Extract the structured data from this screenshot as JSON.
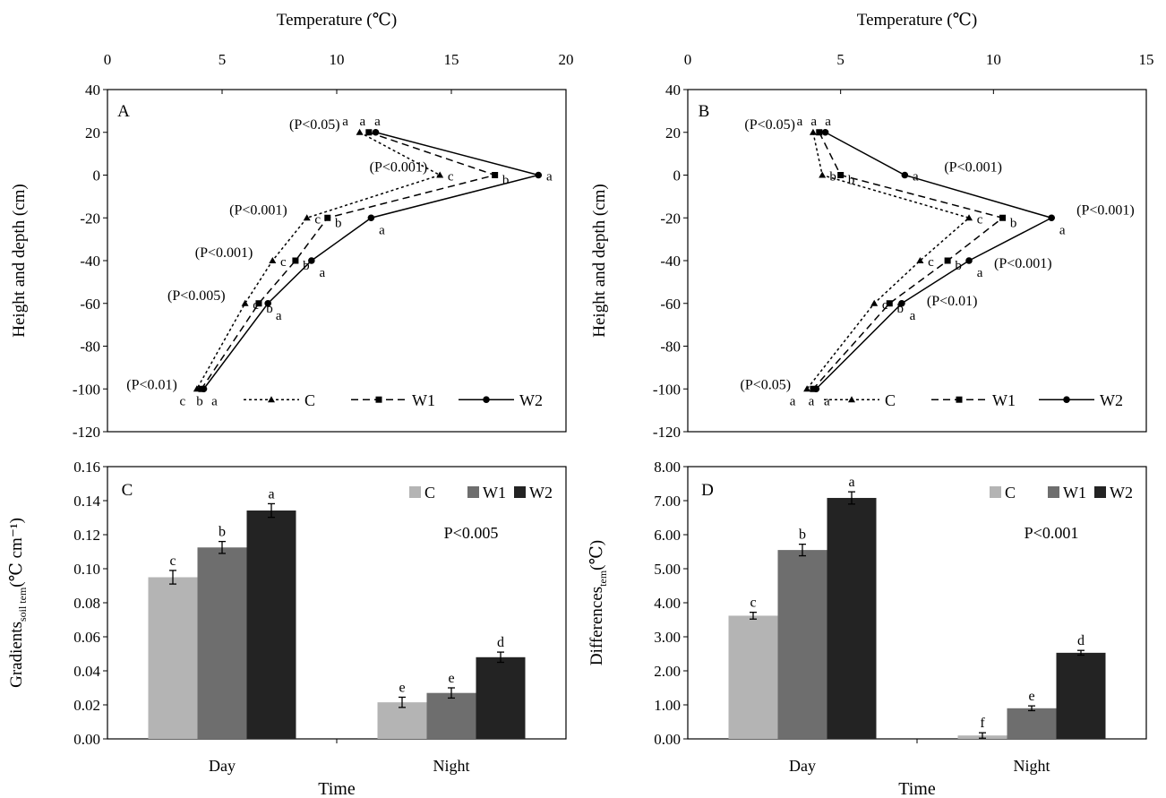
{
  "chart_data": [
    {
      "panel": "A",
      "type": "line",
      "title": "",
      "xlabel": "Temperature (℃)",
      "ylabel": "Height and depth (cm)",
      "xlim": [
        0,
        20
      ],
      "xticks": [
        "0",
        "5",
        "10",
        "15",
        "20"
      ],
      "ylim": [
        -120,
        40
      ],
      "yticks": [
        "40",
        "20",
        "0",
        "-20",
        "-40",
        "-60",
        "-80",
        "-100",
        "-120"
      ],
      "legend": "bottom",
      "series": [
        {
          "name": "C",
          "line": "dotted",
          "marker": "triangle",
          "points": [
            {
              "x": 11.0,
              "y": 20
            },
            {
              "x": 14.5,
              "y": 0
            },
            {
              "x": 8.7,
              "y": -20
            },
            {
              "x": 7.2,
              "y": -40
            },
            {
              "x": 6.0,
              "y": -60
            },
            {
              "x": 3.9,
              "y": -100
            }
          ],
          "letters": [
            "a",
            "c",
            "c",
            "c",
            "c",
            "c"
          ]
        },
        {
          "name": "W1",
          "line": "dashed",
          "marker": "square",
          "points": [
            {
              "x": 11.4,
              "y": 20
            },
            {
              "x": 16.9,
              "y": 0
            },
            {
              "x": 9.6,
              "y": -20
            },
            {
              "x": 8.2,
              "y": -40
            },
            {
              "x": 6.6,
              "y": -60
            },
            {
              "x": 4.1,
              "y": -100
            }
          ],
          "letters": [
            "a",
            "b",
            "b",
            "b",
            "b",
            "b"
          ]
        },
        {
          "name": "W2",
          "line": "solid",
          "marker": "circle",
          "points": [
            {
              "x": 11.7,
              "y": 20
            },
            {
              "x": 18.8,
              "y": 0
            },
            {
              "x": 11.5,
              "y": -20
            },
            {
              "x": 8.9,
              "y": -40
            },
            {
              "x": 7.0,
              "y": -60
            },
            {
              "x": 4.2,
              "y": -100
            }
          ],
          "letters": [
            "a",
            "a",
            "a",
            "a",
            "a",
            "a"
          ]
        }
      ],
      "pvalues": [
        {
          "y": 20,
          "text": "(P<0.05)"
        },
        {
          "y": 0,
          "text": "(P<0.001)"
        },
        {
          "y": -20,
          "text": "(P<0.001)"
        },
        {
          "y": -40,
          "text": "(P<0.001)"
        },
        {
          "y": -60,
          "text": "(P<0.005)"
        },
        {
          "y": -100,
          "text": "(P<0.01)"
        }
      ]
    },
    {
      "panel": "B",
      "type": "line",
      "title": "",
      "xlabel": "Temperature (℃)",
      "ylabel": "Height and depth (cm)",
      "xlim": [
        0,
        15
      ],
      "xticks": [
        "0",
        "5",
        "10",
        "15"
      ],
      "ylim": [
        -120,
        40
      ],
      "yticks": [
        "40",
        "20",
        "0",
        "-20",
        "-40",
        "-60",
        "-80",
        "-100",
        "-120"
      ],
      "legend": "bottom",
      "series": [
        {
          "name": "C",
          "line": "dotted",
          "marker": "triangle",
          "points": [
            {
              "x": 4.1,
              "y": 20
            },
            {
              "x": 4.4,
              "y": 0
            },
            {
              "x": 9.2,
              "y": -20
            },
            {
              "x": 7.6,
              "y": -40
            },
            {
              "x": 6.1,
              "y": -60
            },
            {
              "x": 3.9,
              "y": -100
            }
          ],
          "letters": [
            "a",
            "b",
            "c",
            "c",
            "c",
            "a"
          ]
        },
        {
          "name": "W1",
          "line": "dashed",
          "marker": "square",
          "points": [
            {
              "x": 4.3,
              "y": 20
            },
            {
              "x": 5.0,
              "y": 0
            },
            {
              "x": 10.3,
              "y": -20
            },
            {
              "x": 8.5,
              "y": -40
            },
            {
              "x": 6.6,
              "y": -60
            },
            {
              "x": 4.1,
              "y": -100
            }
          ],
          "letters": [
            "a",
            "b",
            "b",
            "b",
            "b",
            "a"
          ]
        },
        {
          "name": "W2",
          "line": "solid",
          "marker": "circle",
          "points": [
            {
              "x": 4.5,
              "y": 20
            },
            {
              "x": 7.1,
              "y": 0
            },
            {
              "x": 11.9,
              "y": -20
            },
            {
              "x": 9.2,
              "y": -40
            },
            {
              "x": 7.0,
              "y": -60
            },
            {
              "x": 4.2,
              "y": -100
            }
          ],
          "letters": [
            "a",
            "a",
            "a",
            "a",
            "a",
            "a"
          ]
        }
      ],
      "pvalues": [
        {
          "y": 20,
          "text": "(P<0.05)"
        },
        {
          "y": 0,
          "text": "(P<0.001)"
        },
        {
          "y": -20,
          "text": "(P<0.001)"
        },
        {
          "y": -40,
          "text": "(P<0.001)"
        },
        {
          "y": -60,
          "text": "(P<0.01)"
        },
        {
          "y": -100,
          "text": "(P<0.05)"
        }
      ]
    },
    {
      "panel": "C",
      "type": "bar",
      "title": "",
      "xlabel": "Time",
      "ylabel": "Gradients",
      "ylabel_sub": "soil tem",
      "ylabel_unit": "(℃ cm⁻¹)",
      "categories": [
        "Day",
        "Night"
      ],
      "ylim": [
        0,
        0.16
      ],
      "yticks": [
        "0.00",
        "0.02",
        "0.04",
        "0.06",
        "0.08",
        "0.10",
        "0.12",
        "0.14",
        "0.16"
      ],
      "legend": "top-right",
      "annotation": "P<0.005",
      "series": [
        {
          "name": "C",
          "color": "#b4b4b4",
          "values": [
            0.095,
            0.0215
          ],
          "errors": [
            0.004,
            0.003
          ],
          "letters": [
            "c",
            "e"
          ]
        },
        {
          "name": "W1",
          "color": "#6e6e6e",
          "values": [
            0.1125,
            0.027
          ],
          "errors": [
            0.0035,
            0.003
          ],
          "letters": [
            "b",
            "e"
          ]
        },
        {
          "name": "W2",
          "color": "#232323",
          "values": [
            0.1342,
            0.048
          ],
          "errors": [
            0.004,
            0.003
          ],
          "letters": [
            "a",
            "d"
          ]
        }
      ]
    },
    {
      "panel": "D",
      "type": "bar",
      "title": "",
      "xlabel": "Time",
      "ylabel": "Differences",
      "ylabel_sub": "tem",
      "ylabel_unit": "(℃)",
      "categories": [
        "Day",
        "Night"
      ],
      "ylim": [
        0,
        8
      ],
      "yticks": [
        "0.00",
        "1.00",
        "2.00",
        "3.00",
        "4.00",
        "5.00",
        "6.00",
        "7.00",
        "8.00"
      ],
      "legend": "top-right",
      "annotation": "P<0.001",
      "series": [
        {
          "name": "C",
          "color": "#b4b4b4",
          "values": [
            3.62,
            0.1
          ],
          "errors": [
            0.1,
            0.08
          ],
          "letters": [
            "c",
            "f"
          ]
        },
        {
          "name": "W1",
          "color": "#6e6e6e",
          "values": [
            5.55,
            0.9
          ],
          "errors": [
            0.17,
            0.07
          ],
          "letters": [
            "b",
            "e"
          ]
        },
        {
          "name": "W2",
          "color": "#232323",
          "values": [
            7.08,
            2.53
          ],
          "errors": [
            0.18,
            0.07
          ],
          "letters": [
            "a",
            "d"
          ]
        }
      ]
    }
  ]
}
